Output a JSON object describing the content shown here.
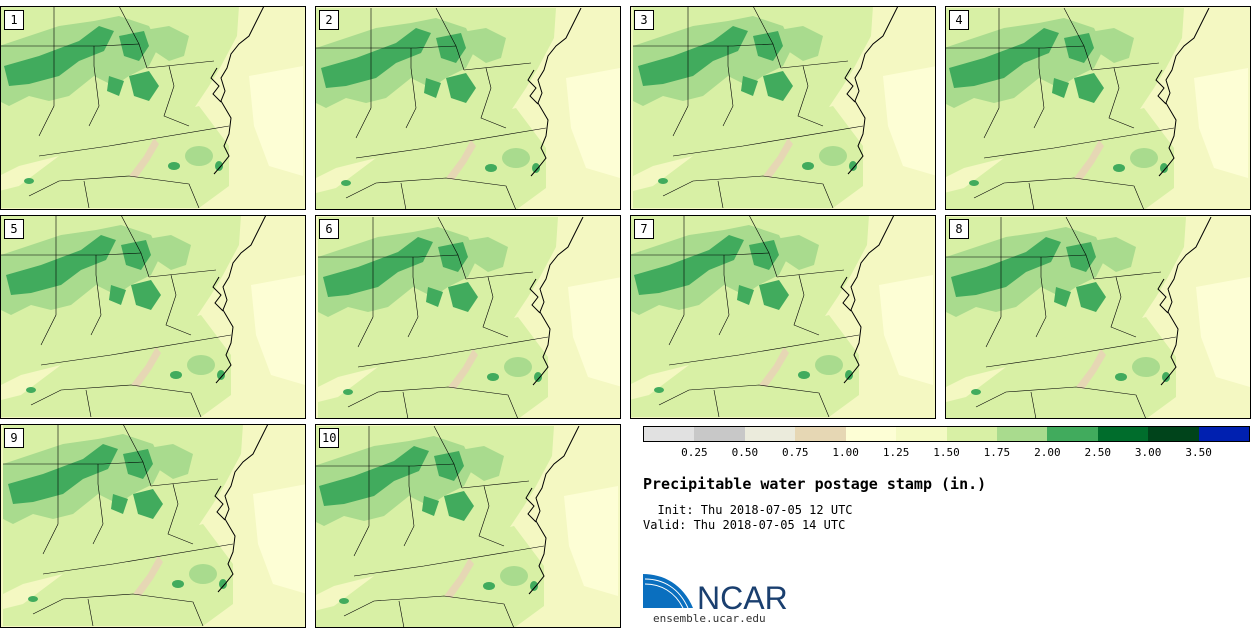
{
  "figure": {
    "title": "Precipitable water postage stamp (in.)",
    "init": "  Init: Thu 2018-07-05 12 UTC",
    "valid": "Valid: Thu 2018-07-05 14 UTC",
    "logo_text": "NCAR",
    "url": "ensemble.ucar.edu"
  },
  "members": [
    "1",
    "2",
    "3",
    "4",
    "5",
    "6",
    "7",
    "8",
    "9",
    "10"
  ],
  "colorbar": {
    "unit": "in.",
    "levels": [
      "0.25",
      "0.50",
      "0.75",
      "1.00",
      "1.25",
      "1.50",
      "1.75",
      "2.00",
      "2.50",
      "3.00",
      "3.50"
    ],
    "colors": [
      "#e1e1e1",
      "#c8c8c8",
      "#ebebdc",
      "#e6d7b4",
      "#fdfed5",
      "#f4fac4",
      "#d8f0a5",
      "#a9db8e",
      "#41ab5d",
      "#006d2c",
      "#00441b",
      "#0020b0"
    ]
  },
  "map_colors": {
    "pw_1_50_1_75": "#f4f8c2",
    "pw_1_25_1_50": "#fdfed5",
    "pw_1_75_2_00": "#d8f0a5",
    "pw_2_00_2_50": "#a9db8e",
    "pw_2_50_3_00": "#41ab5d",
    "pw_1_00_1_25": "#e6d7b4",
    "boundaries": "#000000"
  },
  "logo_colors": {
    "swoosh": "#0a6fbf",
    "text": "#1a3f6f"
  }
}
